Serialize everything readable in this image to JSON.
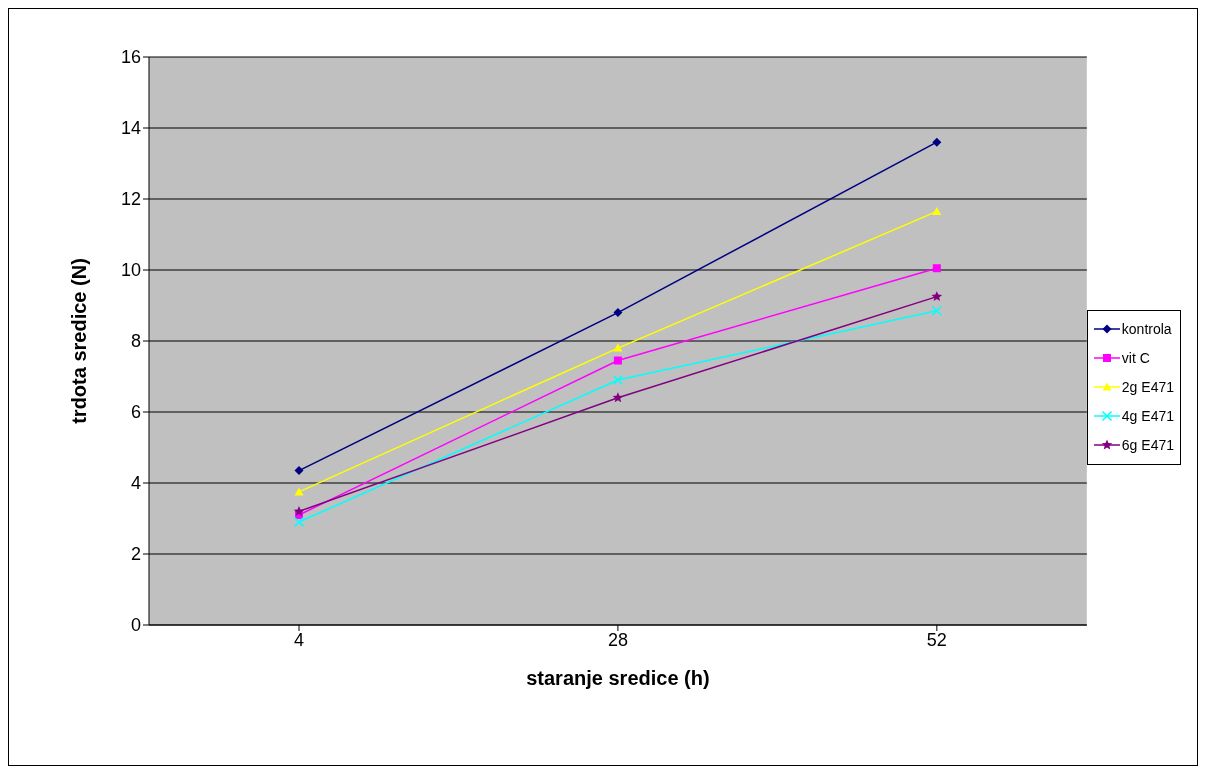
{
  "chart_data": {
    "type": "line",
    "xlabel": "staranje sredice (h)",
    "ylabel": "trdota sredice (N)",
    "categories": [
      "4",
      "28",
      "52"
    ],
    "series": [
      {
        "name": "kontrola",
        "color": "#000080",
        "marker": "diamond",
        "values": [
          4.35,
          8.8,
          13.6
        ]
      },
      {
        "name": "vit C",
        "color": "#ff00ff",
        "marker": "square",
        "values": [
          3.1,
          7.45,
          10.05
        ]
      },
      {
        "name": "2g E471",
        "color": "#ffff00",
        "marker": "triangle",
        "values": [
          3.75,
          7.8,
          11.65
        ]
      },
      {
        "name": "4g E471",
        "color": "#00ffff",
        "marker": "cross",
        "values": [
          2.9,
          6.9,
          8.85
        ]
      },
      {
        "name": "6g E471",
        "color": "#800080",
        "marker": "star",
        "values": [
          3.2,
          6.4,
          9.25
        ]
      }
    ],
    "ylim": [
      0,
      16
    ],
    "yticks": [
      0,
      2,
      4,
      6,
      8,
      10,
      12,
      14,
      16
    ],
    "grid": "y",
    "legend": "right",
    "line_style": "solid"
  }
}
